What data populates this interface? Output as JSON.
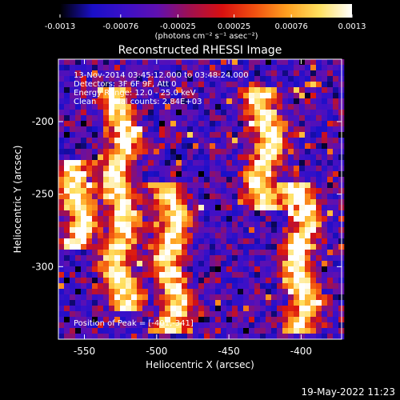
{
  "chart_data": {
    "type": "heatmap",
    "title": "Reconstructed RHESSI Image",
    "xlabel": "Heliocentric X (arcsec)",
    "ylabel": "Heliocentric Y (arcsec)",
    "xlim": [
      -568,
      -372
    ],
    "ylim": [
      -350,
      -157
    ],
    "x_ticks": [
      "-550",
      "-500",
      "-450",
      "-400"
    ],
    "x_tick_values": [
      -550,
      -500,
      -450,
      -400
    ],
    "y_ticks": [
      "-200",
      "-250",
      "-300"
    ],
    "y_tick_values": [
      -200,
      -250,
      -300
    ],
    "colorbar": {
      "min": -0.0013,
      "max": 0.0013,
      "tick_labels": [
        "-0.0013",
        "-0.00076",
        "-0.00025",
        "0.00025",
        "0.00076",
        "0.0013"
      ],
      "tick_values": [
        -0.0013,
        -0.00076,
        -0.00025,
        0.00025,
        0.00076,
        0.0013
      ],
      "label": "(photons cm⁻² s⁻¹ asec⁻²)",
      "colormap": [
        "#000000",
        "#1a0fc8",
        "#3b10c8",
        "#6010b0",
        "#a01050",
        "#d81010",
        "#f05010",
        "#ffa020",
        "#ffe060",
        "#ffffff"
      ]
    },
    "annotations": [
      "13-Nov-2014 03:45:12.000 to 03:48:24.000",
      "Detectors: 3F 6F 9F, Att 0",
      "Energy Range: 12.0 - 25.0 keV",
      "Clean     Total counts: 2.84E+03"
    ],
    "peak_label": "Position of Peak = [-401,-341]",
    "peak": [
      -401,
      -341
    ],
    "bright_ridges": [
      {
        "x_center": -525,
        "y_from": -175,
        "y_to": -330
      },
      {
        "x_center": -490,
        "y_from": -240,
        "y_to": -345
      },
      {
        "x_center": -425,
        "y_from": -175,
        "y_to": -260
      },
      {
        "x_center": -400,
        "y_from": -240,
        "y_to": -345
      },
      {
        "x_center": -555,
        "y_from": -225,
        "y_to": -290
      }
    ]
  },
  "footer": {
    "date": "19-May-2022 11:23"
  }
}
